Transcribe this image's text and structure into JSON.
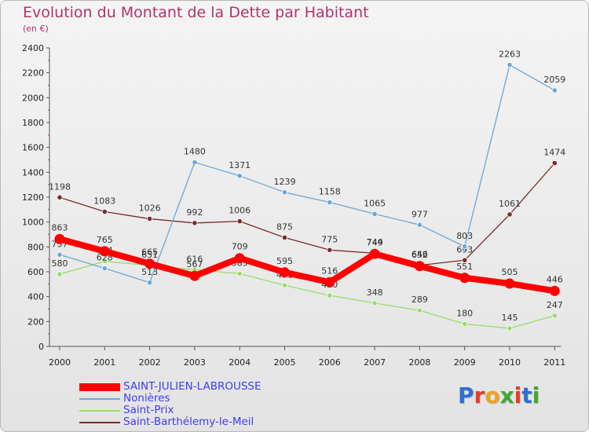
{
  "title": "Evolution du Montant de la Dette par Habitant",
  "subtitle": "(en €)",
  "brand_text": "Proxiti",
  "chart_data": {
    "type": "line",
    "title": "Evolution du Montant de la Dette par Habitant",
    "subtitle": "(en €)",
    "x": [
      "2000",
      "2001",
      "2002",
      "2003",
      "2004",
      "2005",
      "2006",
      "2007",
      "2008",
      "2009",
      "2010",
      "2011"
    ],
    "ylim": [
      0,
      2400
    ],
    "yticks": [
      0,
      200,
      400,
      600,
      800,
      1000,
      1200,
      1400,
      1600,
      1800,
      2000,
      2200,
      2400
    ],
    "grid": false,
    "legend_position": "bottom-left",
    "series": [
      {
        "name": "SAINT-JULIEN-LABROUSSE",
        "color": "#ff0000",
        "values": [
          863,
          765,
          665,
          567,
          709,
          595,
          516,
          744,
          646,
          551,
          505,
          446
        ]
      },
      {
        "name": "Nonières",
        "color": "#6aa7d6",
        "values": [
          737,
          628,
          513,
          null,
          1371,
          1239,
          1158,
          1065,
          977,
          803,
          2263,
          2059
        ],
        "extra_point": {
          "x": "2003",
          "value": 1480
        }
      },
      {
        "name": "Saint-Prix",
        "color": "#99db6a",
        "values": [
          580,
          684,
          651,
          616,
          585,
          491,
          410,
          348,
          289,
          180,
          145,
          247
        ]
      },
      {
        "name": "Saint-Barthélemy-le-Meil",
        "color": "#7a2a2a",
        "values": [
          1198,
          1083,
          1026,
          992,
          1006,
          875,
          775,
          749,
          652,
          693,
          1061,
          1474
        ]
      }
    ]
  }
}
